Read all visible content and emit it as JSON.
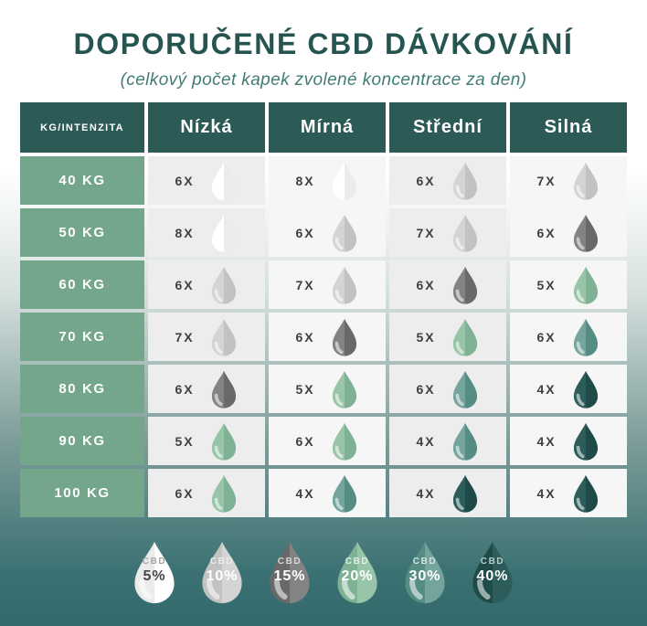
{
  "page": {
    "title": "DOPORUČENÉ CBD DÁVKOVÁNÍ",
    "subtitle": "(celkový počet kapek zvolené koncentrace za den)"
  },
  "table": {
    "corner_label": "KG/INTENZITA",
    "columns": [
      "Nízká",
      "Mírná",
      "Střední",
      "Silná"
    ],
    "rows": [
      {
        "weight": "40 KG",
        "cells": [
          {
            "count": "6X",
            "level": "5"
          },
          {
            "count": "8X",
            "level": "5"
          },
          {
            "count": "6X",
            "level": "10"
          },
          {
            "count": "7X",
            "level": "10"
          }
        ]
      },
      {
        "weight": "50 KG",
        "cells": [
          {
            "count": "8X",
            "level": "5"
          },
          {
            "count": "6X",
            "level": "10"
          },
          {
            "count": "7X",
            "level": "10"
          },
          {
            "count": "6X",
            "level": "15"
          }
        ]
      },
      {
        "weight": "60 KG",
        "cells": [
          {
            "count": "6X",
            "level": "10"
          },
          {
            "count": "7X",
            "level": "10"
          },
          {
            "count": "6X",
            "level": "15"
          },
          {
            "count": "5X",
            "level": "20"
          }
        ]
      },
      {
        "weight": "70 KG",
        "cells": [
          {
            "count": "7X",
            "level": "10"
          },
          {
            "count": "6X",
            "level": "15"
          },
          {
            "count": "5X",
            "level": "20"
          },
          {
            "count": "6X",
            "level": "30"
          }
        ]
      },
      {
        "weight": "80 KG",
        "cells": [
          {
            "count": "6X",
            "level": "15"
          },
          {
            "count": "5X",
            "level": "20"
          },
          {
            "count": "6X",
            "level": "30"
          },
          {
            "count": "4X",
            "level": "40"
          }
        ]
      },
      {
        "weight": "90 KG",
        "cells": [
          {
            "count": "5X",
            "level": "20"
          },
          {
            "count": "6X",
            "level": "20"
          },
          {
            "count": "4X",
            "level": "30"
          },
          {
            "count": "4X",
            "level": "40"
          }
        ]
      },
      {
        "weight": "100 KG",
        "cells": [
          {
            "count": "6X",
            "level": "20"
          },
          {
            "count": "4X",
            "level": "30"
          },
          {
            "count": "4X",
            "level": "40"
          },
          {
            "count": "4X",
            "level": "40"
          }
        ]
      }
    ]
  },
  "legend": {
    "items": [
      {
        "label": "CBD",
        "pct": "5%",
        "level": "5",
        "label_color": "#a6a6a6",
        "pct_color": "#474747"
      },
      {
        "label": "CBD",
        "pct": "10%",
        "level": "10",
        "label_color": "#ededed",
        "pct_color": "#ffffff"
      },
      {
        "label": "CBD",
        "pct": "15%",
        "level": "15",
        "label_color": "#d6d6d6",
        "pct_color": "#ffffff"
      },
      {
        "label": "CBD",
        "pct": "20%",
        "level": "20",
        "label_color": "#e3efe6",
        "pct_color": "#ffffff"
      },
      {
        "label": "CBD",
        "pct": "30%",
        "level": "30",
        "label_color": "#d4e3e0",
        "pct_color": "#ffffff"
      },
      {
        "label": "CBD",
        "pct": "40%",
        "level": "40",
        "label_color": "#b7cdca",
        "pct_color": "#ffffff"
      }
    ]
  },
  "levels": {
    "5": {
      "light": "#ffffff",
      "dark": "#ebebeb"
    },
    "10": {
      "light": "#d4d4d4",
      "dark": "#c2c2c2"
    },
    "15": {
      "light": "#838383",
      "dark": "#696969"
    },
    "20": {
      "light": "#98c5a8",
      "dark": "#7fb294"
    },
    "30": {
      "light": "#74a49c",
      "dark": "#558c84"
    },
    "40": {
      "light": "#2d5d5a",
      "dark": "#1e4a48"
    }
  },
  "colors": {
    "header_bg": "#2b5a57",
    "row_label_bg": "#74a68b",
    "title_text": "#265551",
    "subtitle_text": "#417d76",
    "count_text": "#3f3f3f",
    "cell_bg_dark_column": "#ededed",
    "cell_bg_light_column": "#f6f6f6",
    "background_bottom": "#336a6c"
  },
  "chart_data": {
    "type": "table",
    "title": "DOPORUČENÉ CBD DÁVKOVÁNÍ",
    "subtitle": "(celkový počet kapek zvolené koncentrace za den)",
    "columns": [
      "KG/INTENZITA",
      "Nízká",
      "Mírná",
      "Střední",
      "Silná"
    ],
    "rows": [
      [
        "40 KG",
        "6X (CBD 5%)",
        "8X (CBD 5%)",
        "6X (CBD 10%)",
        "7X (CBD 10%)"
      ],
      [
        "50 KG",
        "8X (CBD 5%)",
        "6X (CBD 10%)",
        "7X (CBD 10%)",
        "6X (CBD 15%)"
      ],
      [
        "60 KG",
        "6X (CBD 10%)",
        "7X (CBD 10%)",
        "6X (CBD 15%)",
        "5X (CBD 20%)"
      ],
      [
        "70 KG",
        "7X (CBD 10%)",
        "6X (CBD 15%)",
        "5X (CBD 20%)",
        "6X (CBD 30%)"
      ],
      [
        "80 KG",
        "6X (CBD 15%)",
        "5X (CBD 20%)",
        "6X (CBD 30%)",
        "4X (CBD 40%)"
      ],
      [
        "90 KG",
        "5X (CBD 20%)",
        "6X (CBD 20%)",
        "4X (CBD 30%)",
        "4X (CBD 40%)"
      ],
      [
        "100 KG",
        "6X (CBD 20%)",
        "4X (CBD 30%)",
        "4X (CBD 40%)",
        "4X (CBD 40%)"
      ]
    ],
    "legend": [
      "CBD 5%",
      "CBD 10%",
      "CBD 15%",
      "CBD 20%",
      "CBD 30%",
      "CBD 40%"
    ]
  }
}
